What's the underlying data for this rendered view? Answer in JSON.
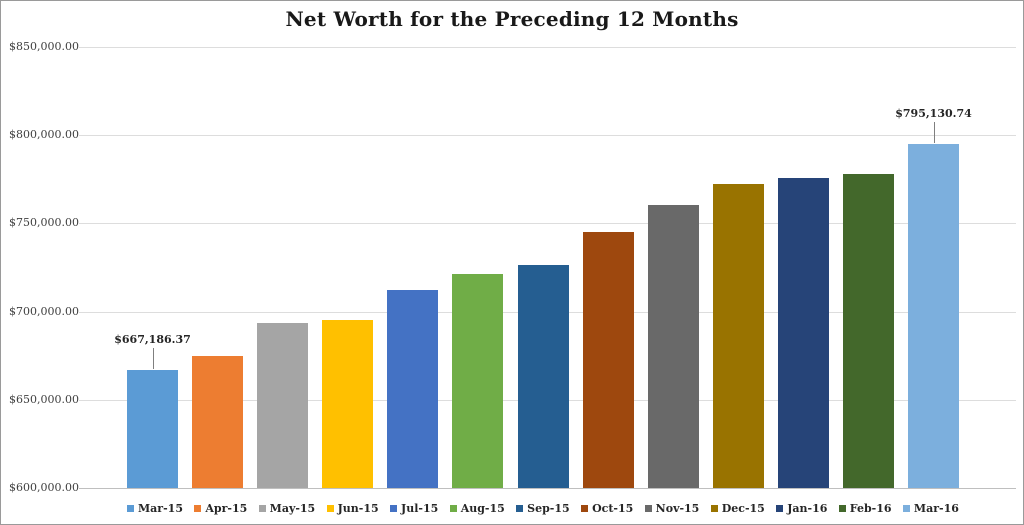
{
  "chart_data": {
    "type": "bar",
    "title": "Net Worth for the Preceding 12 Months",
    "categories": [
      "Mar-15",
      "Apr-15",
      "May-15",
      "Jun-15",
      "Jul-15",
      "Aug-15",
      "Sep-15",
      "Oct-15",
      "Nov-15",
      "Dec-15",
      "Jan-16",
      "Feb-16",
      "Mar-16"
    ],
    "values": [
      667186.37,
      675000,
      693800,
      695500,
      712000,
      721600,
      726700,
      744900,
      760200,
      772200,
      775600,
      777800,
      795130.74
    ],
    "colors": [
      "#5B9BD5",
      "#ED7D31",
      "#A5A5A5",
      "#FFC000",
      "#4472C4",
      "#70AD47",
      "#255E91",
      "#9E480E",
      "#696969",
      "#997300",
      "#264478",
      "#43682B",
      "#7CAFDD"
    ],
    "data_labels": [
      {
        "index": 0,
        "text": "$667,186.37"
      },
      {
        "index": 12,
        "text": "$795,130.74"
      }
    ],
    "xlabel": "",
    "ylabel": "",
    "ylim": [
      600000,
      850000
    ],
    "y_ticks": [
      {
        "label": "$600,000.00",
        "value": 600000
      },
      {
        "label": "$650,000.00",
        "value": 650000
      },
      {
        "label": "$700,000.00",
        "value": 700000
      },
      {
        "label": "$750,000.00",
        "value": 750000
      },
      {
        "label": "$800,000.00",
        "value": 800000
      },
      {
        "label": "$850,000.00",
        "value": 850000
      }
    ],
    "grid": true,
    "legend_position": "bottom"
  }
}
